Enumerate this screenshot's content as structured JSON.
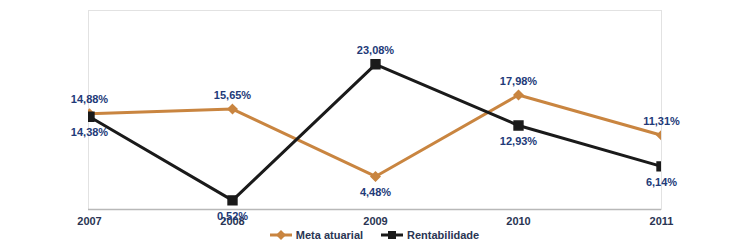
{
  "chart_data": {
    "type": "line",
    "categories": [
      "2007",
      "2008",
      "2009",
      "2010",
      "2011"
    ],
    "series": [
      {
        "name": "Meta atuarial",
        "color": "#c98540",
        "marker": "diamond",
        "values": [
          14.88,
          15.65,
          4.48,
          17.98,
          11.31
        ],
        "value_labels": [
          "14,88%",
          "15,65%",
          "4,48%",
          "17,98%",
          "11,31%"
        ]
      },
      {
        "name": "Rentabilidade",
        "color": "#1a1a1a",
        "marker": "square",
        "values": [
          14.38,
          0.52,
          23.08,
          12.93,
          6.14
        ],
        "value_labels": [
          "14,38%",
          "0,52%",
          "23,08%",
          "12,93%",
          "6,14%"
        ]
      }
    ],
    "ylim": [
      -1,
      32
    ],
    "data_labels": true,
    "tick_labels": "x",
    "legend": "bottom"
  }
}
